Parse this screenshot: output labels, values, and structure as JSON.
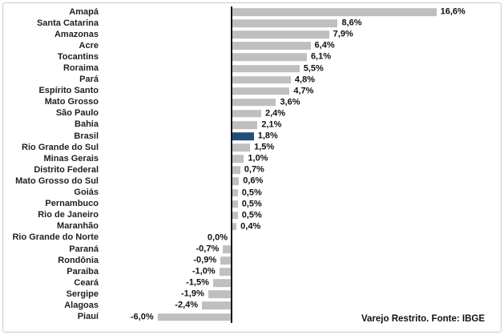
{
  "chart_data": {
    "type": "bar",
    "orientation": "horizontal",
    "title": "",
    "xlabel": "",
    "ylabel": "",
    "grid": false,
    "legend": false,
    "axis_range_pct": [
      -10.5,
      20.7
    ],
    "categories": [
      "Amapá",
      "Santa Catarina",
      "Amazonas",
      "Acre",
      "Tocantins",
      "Roraima",
      "Pará",
      "Espírito Santo",
      "Mato Grosso",
      "São Paulo",
      "Bahia",
      "Brasil",
      "Rio Grande do Sul",
      "Minas Gerais",
      "Distrito Federal",
      "Mato Grosso do Sul",
      "Goiás",
      "Pernambuco",
      "Rio de Janeiro",
      "Maranhão",
      "Rio Grande do Norte",
      "Paraná",
      "Rondônia",
      "Paraíba",
      "Ceará",
      "Sergipe",
      "Alagoas",
      "Piauí"
    ],
    "values": [
      16.6,
      8.6,
      7.9,
      6.4,
      6.1,
      5.5,
      4.8,
      4.7,
      3.6,
      2.4,
      2.1,
      1.8,
      1.5,
      1.0,
      0.7,
      0.6,
      0.5,
      0.5,
      0.5,
      0.4,
      0.0,
      -0.7,
      -0.9,
      -1.0,
      -1.5,
      -1.9,
      -2.4,
      -6.0
    ],
    "value_labels": [
      "16,6%",
      "8,6%",
      "7,9%",
      "6,4%",
      "6,1%",
      "5,5%",
      "4,8%",
      "4,7%",
      "3,6%",
      "2,4%",
      "2,1%",
      "1,8%",
      "1,5%",
      "1,0%",
      "0,7%",
      "0,6%",
      "0,5%",
      "0,5%",
      "0,5%",
      "0,4%",
      "0,0%",
      "-0,7%",
      "-0,9%",
      "-1,0%",
      "-1,5%",
      "-1,9%",
      "-2,4%",
      "-6,0%"
    ],
    "highlight_category": "Brasil",
    "highlight_index": 11,
    "colors": {
      "bar": "#bfbfbf",
      "highlight": "#1f4e79",
      "axis": "#161616"
    },
    "note": "Varejo Restrito. Fonte: IBGE"
  }
}
